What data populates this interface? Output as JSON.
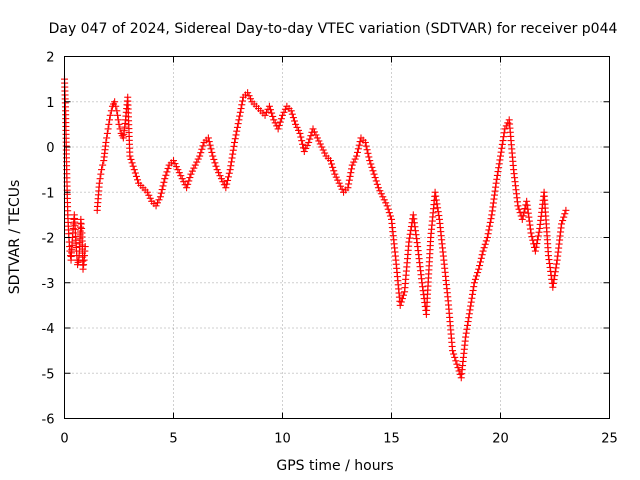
{
  "chart_data": {
    "type": "scatter",
    "title": "Day 047 of 2024, Sidereal Day-to-day VTEC variation (SDTVAR) for receiver p044",
    "xlabel": "GPS time / hours",
    "ylabel": "SDTVAR / TECUs",
    "xlim": [
      0,
      25
    ],
    "ylim": [
      -6,
      2
    ],
    "xticks": [
      "0",
      "5",
      "10",
      "15",
      "20",
      "25"
    ],
    "yticks": [
      "2",
      "1",
      "0",
      "-1",
      "-2",
      "-3",
      "-4",
      "-5",
      "-6"
    ],
    "grid": true,
    "marker": "+",
    "color": "#ff0000",
    "series": [
      {
        "name": "SDTVAR",
        "x": [
          0.0,
          0.05,
          0.1,
          0.15,
          0.2,
          0.25,
          0.3,
          0.35,
          0.4,
          0.45,
          0.5,
          0.55,
          0.6,
          0.65,
          0.7,
          0.75,
          0.8,
          0.85,
          0.9,
          0.95,
          1.5,
          1.6,
          1.7,
          1.8,
          1.9,
          2.0,
          2.1,
          2.2,
          2.3,
          2.4,
          2.5,
          2.6,
          2.7,
          2.8,
          2.9,
          3.0,
          3.2,
          3.4,
          3.6,
          3.8,
          4.0,
          4.2,
          4.4,
          4.6,
          4.8,
          5.0,
          5.2,
          5.4,
          5.6,
          5.8,
          6.0,
          6.2,
          6.4,
          6.6,
          6.8,
          7.0,
          7.2,
          7.4,
          7.6,
          7.8,
          8.0,
          8.2,
          8.4,
          8.6,
          8.8,
          9.0,
          9.2,
          9.4,
          9.6,
          9.8,
          10.0,
          10.2,
          10.4,
          10.6,
          10.8,
          11.0,
          11.2,
          11.4,
          11.6,
          11.8,
          12.0,
          12.2,
          12.4,
          12.6,
          12.8,
          13.0,
          13.2,
          13.4,
          13.6,
          13.8,
          14.0,
          14.2,
          14.4,
          14.6,
          14.8,
          15.0,
          15.2,
          15.4,
          15.6,
          15.8,
          16.0,
          16.2,
          16.4,
          16.6,
          16.8,
          17.0,
          17.2,
          17.4,
          17.6,
          17.8,
          18.0,
          18.2,
          18.4,
          18.6,
          18.8,
          19.0,
          19.2,
          19.4,
          19.6,
          19.8,
          20.0,
          20.2,
          20.4,
          20.6,
          20.8,
          21.0,
          21.2,
          21.4,
          21.6,
          21.8,
          22.0,
          22.2,
          22.4,
          22.6,
          22.8,
          23.0
        ],
        "y": [
          1.5,
          0.8,
          -0.5,
          -1.5,
          -2.0,
          -2.3,
          -2.5,
          -2.1,
          -1.8,
          -1.5,
          -1.9,
          -2.3,
          -2.6,
          -2.5,
          -2.2,
          -1.6,
          -1.9,
          -2.7,
          -2.5,
          -2.2,
          -1.4,
          -0.8,
          -0.5,
          -0.3,
          0.1,
          0.4,
          0.7,
          0.9,
          1.0,
          0.8,
          0.5,
          0.3,
          0.2,
          0.6,
          1.1,
          -0.2,
          -0.5,
          -0.8,
          -0.9,
          -1.0,
          -1.2,
          -1.3,
          -1.1,
          -0.7,
          -0.4,
          -0.3,
          -0.5,
          -0.7,
          -0.9,
          -0.6,
          -0.4,
          -0.2,
          0.1,
          0.2,
          -0.2,
          -0.5,
          -0.7,
          -0.9,
          -0.5,
          0.1,
          0.6,
          1.1,
          1.2,
          1.0,
          0.9,
          0.8,
          0.7,
          0.9,
          0.6,
          0.4,
          0.7,
          0.9,
          0.8,
          0.5,
          0.3,
          -0.1,
          0.1,
          0.4,
          0.2,
          0.0,
          -0.2,
          -0.3,
          -0.6,
          -0.8,
          -1.0,
          -0.9,
          -0.4,
          -0.2,
          0.2,
          0.1,
          -0.3,
          -0.6,
          -0.9,
          -1.1,
          -1.3,
          -1.6,
          -2.5,
          -3.5,
          -3.2,
          -2.1,
          -1.5,
          -2.2,
          -3.0,
          -3.7,
          -2.0,
          -1.0,
          -1.6,
          -2.5,
          -3.4,
          -4.5,
          -4.8,
          -5.1,
          -4.2,
          -3.6,
          -3.0,
          -2.7,
          -2.3,
          -2.0,
          -1.5,
          -0.8,
          -0.2,
          0.4,
          0.6,
          -0.5,
          -1.3,
          -1.6,
          -1.2,
          -1.9,
          -2.3,
          -1.8,
          -1.0,
          -2.4,
          -3.1,
          -2.5,
          -1.7,
          -1.4
        ]
      }
    ]
  }
}
